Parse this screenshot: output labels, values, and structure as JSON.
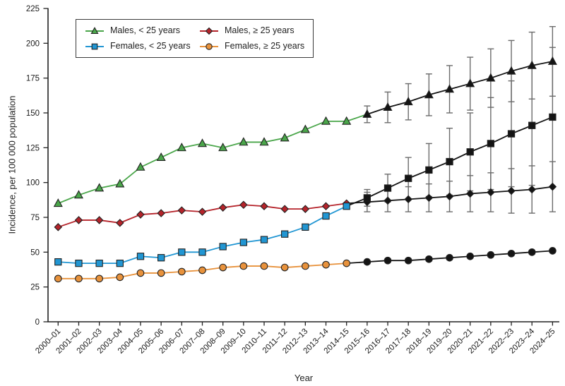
{
  "figure": {
    "x_axis_label": "Year",
    "y_axis_label": "Incidence, per 100 000 population"
  },
  "legend": {
    "items": [
      {
        "id": "males-under-25",
        "label": "Males, < 25 years",
        "marker": "triangle",
        "color": "#4aa64a"
      },
      {
        "id": "males-25-plus",
        "label": "Males, ≥ 25 years",
        "marker": "diamond",
        "color": "#b5232a"
      },
      {
        "id": "females-under-25",
        "label": "Females, < 25 years",
        "marker": "square",
        "color": "#2196d3"
      },
      {
        "id": "females-25-plus",
        "label": "Females, ≥ 25 years",
        "marker": "circle",
        "color": "#e8923c"
      }
    ]
  },
  "chart_data": {
    "type": "line",
    "title": "",
    "xlabel": "Year",
    "ylabel": "Incidence, per 100 000 population",
    "ylim": [
      0,
      225
    ],
    "yticks": [
      0,
      25,
      50,
      75,
      100,
      125,
      150,
      175,
      200,
      225
    ],
    "grid": false,
    "legend_position": "top-left",
    "projection_start": "2015–16",
    "projection_color": "#141414",
    "error_bar_color": "#6b6b6b",
    "categories": [
      "2000–01",
      "2001–02",
      "2002–03",
      "2003–04",
      "2004–05",
      "2005–06",
      "2006–07",
      "2007–08",
      "2008–09",
      "2009–10",
      "2010–11",
      "2011–12",
      "2012–13",
      "2013–14",
      "2014–15",
      "2015–16",
      "2016–17",
      "2017–18",
      "2018–19",
      "2019–20",
      "2020–21",
      "2021–22",
      "2022–23",
      "2023–24",
      "2024–25"
    ],
    "series": [
      {
        "id": "males-under-25",
        "name": "Males, < 25 years",
        "marker": "triangle",
        "color": "#4aa64a",
        "colored_through_index": 15,
        "values": [
          85,
          91,
          96,
          99,
          111,
          118,
          125,
          128,
          125,
          129,
          129,
          132,
          138,
          144,
          144,
          149,
          154,
          158,
          163,
          167,
          171,
          175,
          180,
          184,
          187
        ],
        "error": [
          null,
          null,
          null,
          null,
          null,
          null,
          null,
          null,
          null,
          null,
          null,
          null,
          null,
          null,
          null,
          6,
          11,
          13,
          15,
          17,
          19,
          21,
          22,
          24,
          25
        ]
      },
      {
        "id": "males-25-plus",
        "name": "Males, ≥ 25 years",
        "marker": "diamond",
        "color": "#b5232a",
        "colored_through_index": 14,
        "values": [
          68,
          73,
          73,
          71,
          77,
          78,
          80,
          79,
          82,
          84,
          83,
          81,
          81,
          83,
          85,
          86,
          87,
          88,
          89,
          90,
          92,
          93,
          94,
          95,
          97
        ],
        "error": [
          null,
          null,
          null,
          null,
          null,
          null,
          null,
          null,
          null,
          null,
          null,
          null,
          null,
          null,
          null,
          7,
          8,
          9,
          10,
          11,
          13,
          14,
          16,
          17,
          18
        ]
      },
      {
        "id": "females-under-25",
        "name": "Females, < 25 years",
        "marker": "square",
        "color": "#2196d3",
        "colored_through_index": 14,
        "values": [
          43,
          42,
          42,
          42,
          47,
          46,
          50,
          50,
          54,
          57,
          59,
          63,
          68,
          76,
          83,
          89,
          96,
          103,
          109,
          115,
          122,
          128,
          135,
          141,
          147
        ],
        "error": [
          null,
          null,
          null,
          null,
          null,
          null,
          null,
          null,
          null,
          null,
          null,
          null,
          null,
          null,
          null,
          6,
          10,
          15,
          19,
          24,
          28,
          33,
          38,
          43,
          50
        ]
      },
      {
        "id": "females-25-plus",
        "name": "Females, ≥ 25 years",
        "marker": "circle",
        "color": "#e8923c",
        "colored_through_index": 14,
        "values": [
          31,
          31,
          31,
          32,
          35,
          35,
          36,
          37,
          39,
          40,
          40,
          39,
          40,
          41,
          42,
          43,
          44,
          44,
          45,
          46,
          47,
          48,
          49,
          50,
          51
        ],
        "error": [
          null,
          null,
          null,
          null,
          null,
          null,
          null,
          null,
          null,
          null,
          null,
          null,
          null,
          null,
          null,
          null,
          null,
          null,
          null,
          null,
          null,
          null,
          null,
          null,
          null
        ]
      }
    ]
  }
}
